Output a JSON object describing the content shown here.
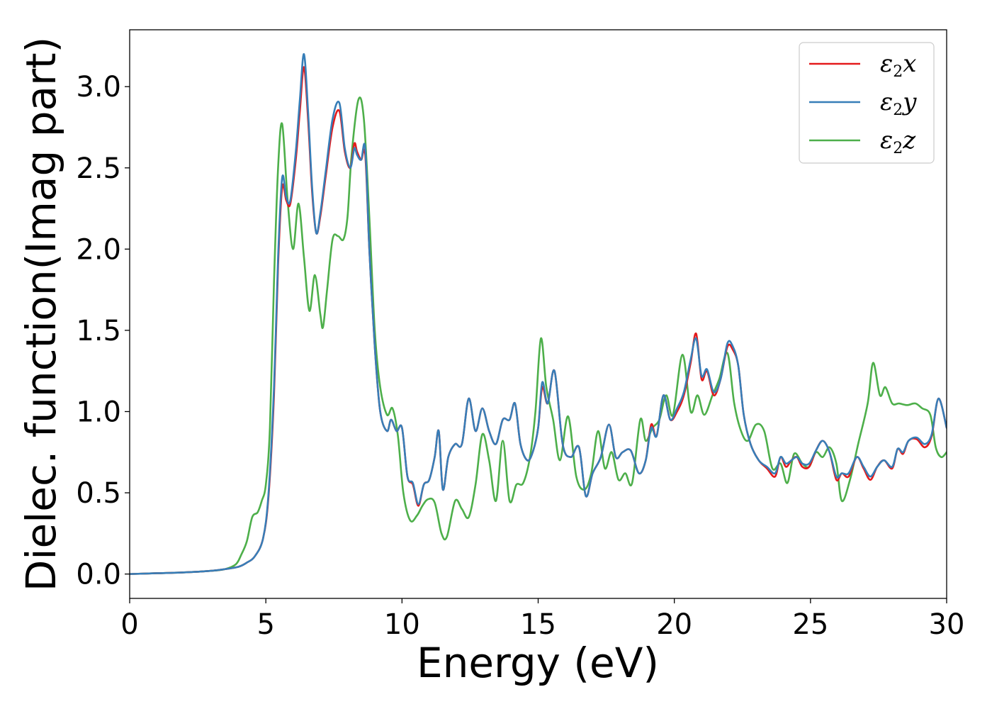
{
  "chart_data": {
    "type": "line",
    "title": "",
    "xlabel": "Energy (eV)",
    "ylabel": "Dielec. function(Imag part)",
    "xlim": [
      0,
      30
    ],
    "ylim": [
      -0.15,
      3.35
    ],
    "xticks": [
      0,
      5,
      10,
      15,
      20,
      25,
      30
    ],
    "xtick_labels": [
      "0",
      "5",
      "10",
      "15",
      "20",
      "25",
      "30"
    ],
    "yticks": [
      0.0,
      0.5,
      1.0,
      1.5,
      2.0,
      2.5,
      3.0
    ],
    "ytick_labels": [
      "0.0",
      "0.5",
      "1.0",
      "1.5",
      "2.0",
      "2.5",
      "3.0"
    ],
    "grid": false,
    "legend_position": "top-right",
    "series": [
      {
        "name": "ε2x",
        "legend_base": "ε",
        "legend_sub": "2",
        "legend_var": "x",
        "color": "#e41a1c",
        "x": [
          0,
          1,
          2,
          3,
          3.5,
          4,
          4.3,
          4.6,
          4.9,
          5.1,
          5.3,
          5.45,
          5.6,
          5.75,
          5.9,
          6.1,
          6.25,
          6.4,
          6.55,
          6.7,
          6.85,
          7.0,
          7.2,
          7.45,
          7.7,
          7.9,
          8.1,
          8.25,
          8.35,
          8.5,
          8.65,
          8.8,
          9.0,
          9.2,
          9.45,
          9.6,
          9.8,
          10.0,
          10.2,
          10.4,
          10.6,
          10.8,
          11.0,
          11.2,
          11.35,
          11.5,
          11.7,
          11.95,
          12.2,
          12.45,
          12.7,
          12.95,
          13.2,
          13.45,
          13.7,
          13.95,
          14.15,
          14.35,
          14.6,
          14.8,
          15.0,
          15.15,
          15.35,
          15.6,
          15.9,
          16.2,
          16.5,
          16.75,
          17.0,
          17.3,
          17.6,
          17.85,
          18.1,
          18.4,
          18.7,
          18.95,
          19.15,
          19.35,
          19.6,
          19.85,
          20.1,
          20.35,
          20.6,
          20.8,
          21.0,
          21.2,
          21.45,
          21.7,
          21.95,
          22.15,
          22.35,
          22.55,
          22.8,
          23.1,
          23.4,
          23.7,
          23.9,
          24.1,
          24.3,
          24.5,
          24.7,
          24.95,
          25.2,
          25.45,
          25.7,
          25.95,
          26.15,
          26.4,
          26.7,
          26.95,
          27.2,
          27.45,
          27.7,
          28.0,
          28.2,
          28.4,
          28.6,
          28.9,
          29.2,
          29.45,
          29.7,
          30
        ],
        "y": [
          0.0,
          0.005,
          0.01,
          0.02,
          0.03,
          0.045,
          0.07,
          0.11,
          0.22,
          0.48,
          1.1,
          1.9,
          2.38,
          2.3,
          2.28,
          2.55,
          2.85,
          3.12,
          2.8,
          2.35,
          2.1,
          2.2,
          2.45,
          2.75,
          2.85,
          2.6,
          2.5,
          2.65,
          2.6,
          2.55,
          2.58,
          2.0,
          1.4,
          1.0,
          0.88,
          0.95,
          0.88,
          0.9,
          0.6,
          0.55,
          0.42,
          0.55,
          0.58,
          0.72,
          0.88,
          0.52,
          0.72,
          0.8,
          0.8,
          1.08,
          0.88,
          1.02,
          0.88,
          0.8,
          0.95,
          0.95,
          1.05,
          0.8,
          0.7,
          0.75,
          0.9,
          1.15,
          1.05,
          1.25,
          0.8,
          0.72,
          0.78,
          0.48,
          0.62,
          0.72,
          0.92,
          0.72,
          0.75,
          0.76,
          0.62,
          0.7,
          0.92,
          0.85,
          1.1,
          0.95,
          1.0,
          1.1,
          1.3,
          1.48,
          1.2,
          1.25,
          1.1,
          1.2,
          1.4,
          1.38,
          1.28,
          0.98,
          0.8,
          0.7,
          0.65,
          0.6,
          0.72,
          0.66,
          0.7,
          0.72,
          0.66,
          0.66,
          0.76,
          0.82,
          0.75,
          0.58,
          0.62,
          0.6,
          0.72,
          0.65,
          0.58,
          0.66,
          0.7,
          0.65,
          0.77,
          0.74,
          0.82,
          0.83,
          0.78,
          0.85,
          1.08,
          0.9
        ]
      },
      {
        "name": "ε2y",
        "legend_base": "ε",
        "legend_sub": "2",
        "legend_var": "y",
        "color": "#377eb8",
        "x": [
          0,
          1,
          2,
          3,
          3.5,
          4,
          4.3,
          4.6,
          4.9,
          5.1,
          5.3,
          5.45,
          5.6,
          5.75,
          5.9,
          6.1,
          6.25,
          6.4,
          6.55,
          6.7,
          6.85,
          7.0,
          7.2,
          7.45,
          7.7,
          7.9,
          8.1,
          8.25,
          8.35,
          8.5,
          8.65,
          8.8,
          9.0,
          9.2,
          9.45,
          9.6,
          9.8,
          10.0,
          10.2,
          10.4,
          10.6,
          10.8,
          11.0,
          11.2,
          11.35,
          11.5,
          11.7,
          11.95,
          12.2,
          12.45,
          12.7,
          12.95,
          13.2,
          13.45,
          13.7,
          13.95,
          14.15,
          14.35,
          14.6,
          14.8,
          15.0,
          15.15,
          15.35,
          15.6,
          15.9,
          16.2,
          16.5,
          16.75,
          17.0,
          17.3,
          17.6,
          17.85,
          18.1,
          18.4,
          18.7,
          18.95,
          19.15,
          19.35,
          19.6,
          19.85,
          20.1,
          20.35,
          20.6,
          20.8,
          21.0,
          21.2,
          21.45,
          21.7,
          21.95,
          22.15,
          22.35,
          22.55,
          22.8,
          23.1,
          23.4,
          23.7,
          23.9,
          24.1,
          24.3,
          24.5,
          24.7,
          24.95,
          25.2,
          25.45,
          25.7,
          25.95,
          26.15,
          26.4,
          26.7,
          26.95,
          27.2,
          27.45,
          27.7,
          28.0,
          28.2,
          28.4,
          28.6,
          28.9,
          29.2,
          29.45,
          29.7,
          30
        ],
        "y": [
          0.0,
          0.005,
          0.01,
          0.02,
          0.03,
          0.045,
          0.07,
          0.11,
          0.22,
          0.5,
          1.15,
          1.95,
          2.44,
          2.32,
          2.3,
          2.6,
          2.92,
          3.2,
          2.85,
          2.38,
          2.1,
          2.22,
          2.48,
          2.8,
          2.9,
          2.62,
          2.5,
          2.62,
          2.58,
          2.55,
          2.62,
          2.0,
          1.4,
          1.0,
          0.88,
          0.95,
          0.88,
          0.9,
          0.6,
          0.56,
          0.43,
          0.55,
          0.58,
          0.72,
          0.88,
          0.52,
          0.72,
          0.8,
          0.8,
          1.08,
          0.88,
          1.02,
          0.88,
          0.8,
          0.95,
          0.95,
          1.05,
          0.8,
          0.7,
          0.75,
          0.9,
          1.18,
          1.05,
          1.25,
          0.8,
          0.72,
          0.78,
          0.48,
          0.62,
          0.72,
          0.92,
          0.72,
          0.75,
          0.76,
          0.62,
          0.7,
          0.9,
          0.85,
          1.1,
          0.95,
          1.02,
          1.12,
          1.32,
          1.45,
          1.22,
          1.26,
          1.12,
          1.2,
          1.42,
          1.4,
          1.28,
          0.98,
          0.8,
          0.7,
          0.66,
          0.62,
          0.72,
          0.68,
          0.7,
          0.72,
          0.68,
          0.68,
          0.76,
          0.82,
          0.75,
          0.6,
          0.62,
          0.62,
          0.72,
          0.66,
          0.6,
          0.66,
          0.7,
          0.66,
          0.77,
          0.75,
          0.82,
          0.84,
          0.8,
          0.86,
          1.08,
          0.9
        ]
      },
      {
        "name": "ε2z",
        "legend_base": "ε",
        "legend_sub": "2",
        "legend_var": "z",
        "color": "#4daf4a",
        "x": [
          0,
          1,
          2,
          3,
          3.5,
          3.9,
          4.1,
          4.3,
          4.5,
          4.7,
          4.85,
          5.0,
          5.15,
          5.3,
          5.45,
          5.6,
          5.8,
          6.0,
          6.2,
          6.4,
          6.6,
          6.8,
          7.0,
          7.1,
          7.25,
          7.45,
          7.65,
          7.85,
          8.0,
          8.15,
          8.4,
          8.6,
          8.8,
          9.0,
          9.2,
          9.45,
          9.65,
          9.85,
          10.05,
          10.3,
          10.55,
          10.75,
          10.95,
          11.2,
          11.45,
          11.65,
          11.95,
          12.2,
          12.45,
          12.7,
          12.95,
          13.2,
          13.45,
          13.7,
          13.95,
          14.2,
          14.45,
          14.7,
          14.9,
          15.1,
          15.3,
          15.55,
          15.8,
          16.1,
          16.4,
          16.7,
          16.95,
          17.2,
          17.45,
          17.7,
          17.95,
          18.2,
          18.45,
          18.75,
          18.95,
          19.2,
          19.45,
          19.7,
          19.95,
          20.3,
          20.6,
          20.85,
          21.1,
          21.4,
          21.65,
          21.95,
          22.2,
          22.45,
          22.7,
          23.0,
          23.3,
          23.6,
          23.9,
          24.15,
          24.4,
          24.7,
          24.95,
          25.2,
          25.45,
          25.7,
          25.95,
          26.15,
          26.45,
          26.75,
          27.1,
          27.3,
          27.55,
          27.75,
          28.0,
          28.25,
          28.55,
          28.85,
          29.1,
          29.4,
          29.6,
          29.8,
          30
        ],
        "y": [
          0.0,
          0.005,
          0.01,
          0.02,
          0.03,
          0.06,
          0.12,
          0.2,
          0.35,
          0.38,
          0.45,
          0.55,
          0.9,
          1.8,
          2.5,
          2.77,
          2.3,
          2.0,
          2.28,
          1.95,
          1.62,
          1.84,
          1.6,
          1.52,
          1.75,
          2.06,
          2.08,
          2.06,
          2.2,
          2.58,
          2.92,
          2.8,
          2.2,
          1.5,
          1.15,
          0.98,
          1.02,
          0.85,
          0.5,
          0.33,
          0.36,
          0.42,
          0.46,
          0.44,
          0.25,
          0.23,
          0.45,
          0.4,
          0.35,
          0.55,
          0.86,
          0.7,
          0.45,
          0.82,
          0.45,
          0.55,
          0.56,
          0.72,
          1.0,
          1.45,
          1.15,
          0.95,
          0.7,
          0.97,
          0.6,
          0.52,
          0.62,
          0.88,
          0.65,
          0.75,
          0.58,
          0.62,
          0.56,
          0.95,
          0.82,
          0.9,
          0.95,
          1.1,
          0.98,
          1.35,
          1.0,
          1.1,
          0.98,
          1.1,
          1.2,
          1.36,
          1.05,
          0.88,
          0.82,
          0.92,
          0.88,
          0.65,
          0.68,
          0.56,
          0.74,
          0.68,
          0.66,
          0.75,
          0.72,
          0.78,
          0.68,
          0.45,
          0.58,
          0.8,
          1.05,
          1.3,
          1.1,
          1.15,
          1.05,
          1.05,
          1.04,
          1.05,
          1.02,
          0.98,
          0.78,
          0.72,
          0.75
        ]
      }
    ]
  }
}
